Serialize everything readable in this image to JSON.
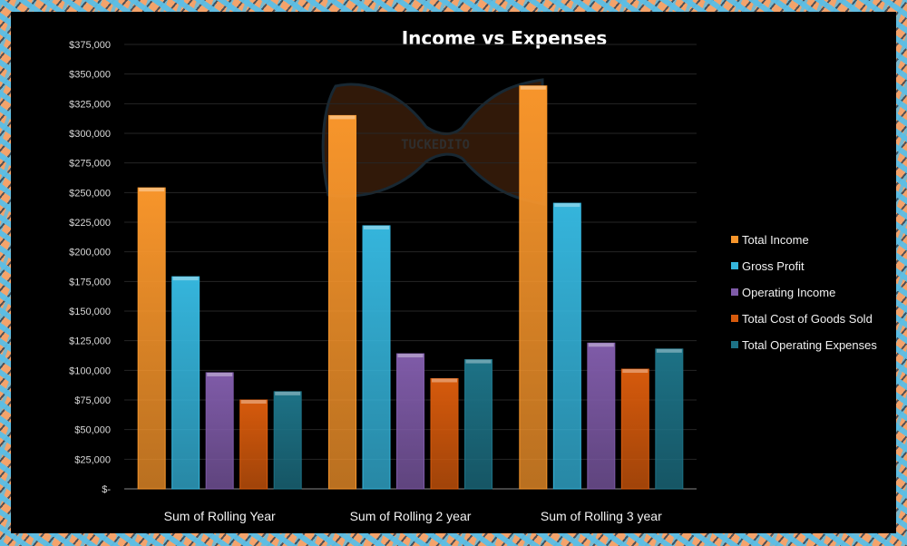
{
  "chart_data": {
    "type": "bar",
    "title": "Income vs Expenses",
    "categories": [
      "Sum of Rolling Year",
      "Sum of Rolling 2 year",
      "Sum of Rolling 3 year"
    ],
    "series": [
      {
        "name": "Total Income",
        "color": "#f7952b",
        "values": [
          254000,
          315000,
          340000
        ]
      },
      {
        "name": "Gross Profit",
        "color": "#35b5dc",
        "values": [
          179000,
          222000,
          241000
        ]
      },
      {
        "name": "Operating Income",
        "color": "#7f5ba8",
        "values": [
          98000,
          114000,
          123000
        ]
      },
      {
        "name": "Total Cost of Goods Sold",
        "color": "#d65a0c",
        "values": [
          75000,
          93000,
          101000
        ]
      },
      {
        "name": "Total Operating Expenses",
        "color": "#1d7286",
        "values": [
          82000,
          109000,
          118000
        ]
      }
    ],
    "yticks": [
      "$-",
      "$25,000",
      "$50,000",
      "$75,000",
      "$100,000",
      "$125,000",
      "$150,000",
      "$175,000",
      "$200,000",
      "$225,000",
      "$250,000",
      "$275,000",
      "$300,000",
      "$325,000",
      "$350,000",
      "$375,000"
    ],
    "ylim": [
      0,
      375000
    ],
    "grid": true,
    "legend": "right",
    "xlabel": "",
    "ylabel": ""
  },
  "watermark": {
    "text": "TUCKEDITO"
  }
}
